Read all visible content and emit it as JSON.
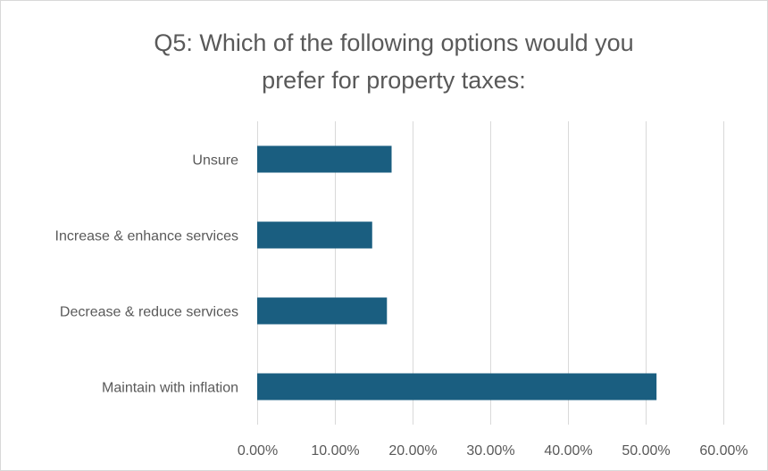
{
  "chart_data": {
    "type": "bar",
    "orientation": "horizontal",
    "title_lines": [
      "Q5: Which of the following options would you",
      "prefer for property taxes:"
    ],
    "categories": [
      "Unsure",
      "Increase & enhance services",
      "Decrease & reduce services",
      "Maintain with inflation"
    ],
    "values": [
      0.173,
      0.148,
      0.167,
      0.514
    ],
    "xlim": [
      0,
      0.6
    ],
    "xticks": [
      0,
      0.1,
      0.2,
      0.3,
      0.4,
      0.5,
      0.6
    ],
    "xtick_labels": [
      "0.00%",
      "10.00%",
      "20.00%",
      "30.00%",
      "40.00%",
      "50.00%",
      "60.00%"
    ],
    "xlabel": "",
    "ylabel": "",
    "grid": "vertical",
    "legend": "none",
    "bar_color": "#1a5e80",
    "grid_color": "#d9d9d9"
  }
}
